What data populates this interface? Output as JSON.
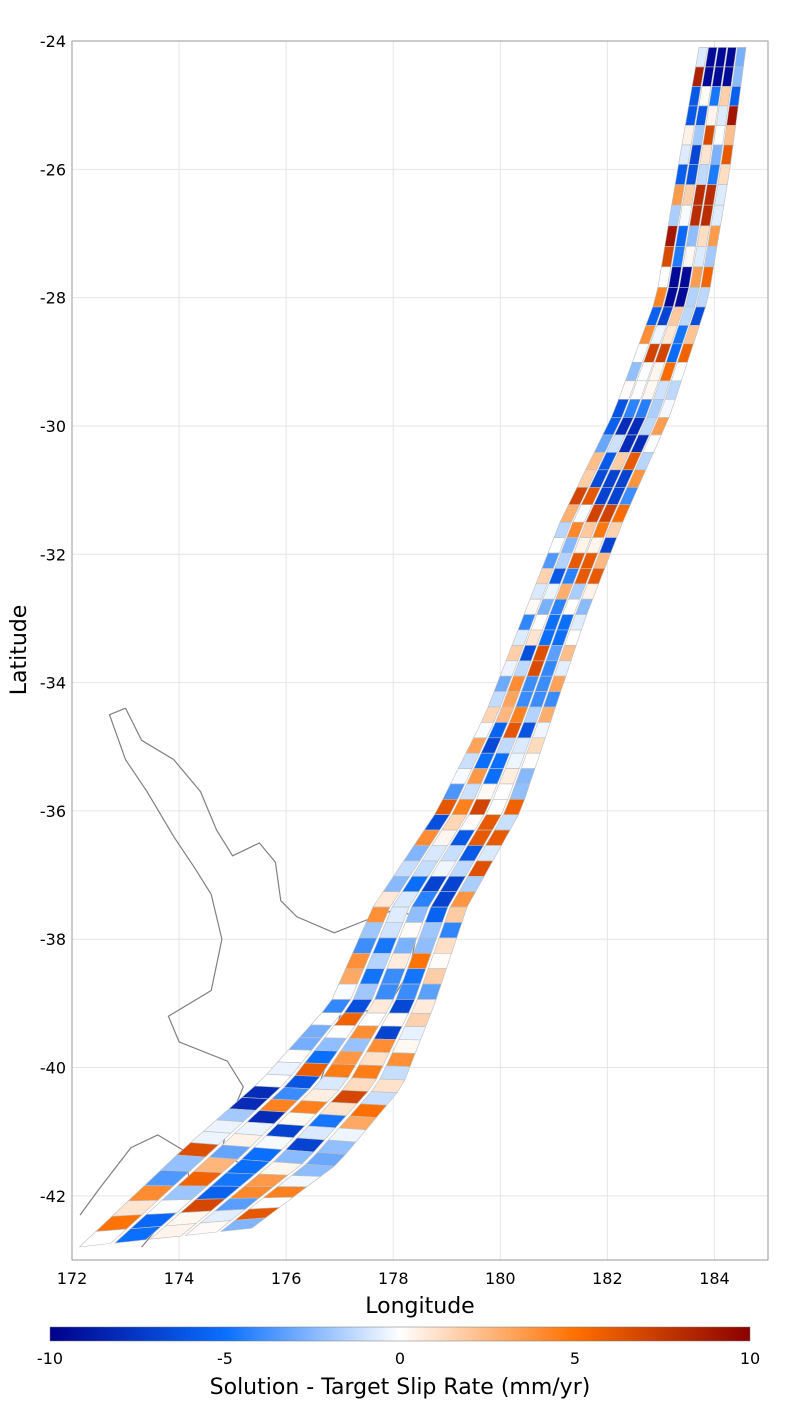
{
  "chart_data": {
    "type": "heatmap",
    "subtype": "fault-subsection-map",
    "xlabel": "Longitude",
    "ylabel": "Latitude",
    "xlim": [
      172,
      185
    ],
    "ylim": [
      -43,
      -24
    ],
    "xticks": [
      172,
      174,
      176,
      178,
      180,
      182,
      184
    ],
    "yticks": [
      -24,
      -26,
      -28,
      -30,
      -32,
      -34,
      -36,
      -38,
      -40,
      -42
    ],
    "grid": true,
    "colorbar": {
      "title": "Solution - Target Slip Rate (mm/yr)",
      "min": -10,
      "max": 10,
      "ticks": [
        -10,
        -5,
        0,
        5,
        10
      ],
      "colors": [
        "#00008b",
        "#0a6fff",
        "#ffffff",
        "#ff7000",
        "#8b0000"
      ]
    },
    "coastline": {
      "color": "#808080",
      "description": "North Island, New Zealand"
    },
    "fault_trace": {
      "description": "Hikurangi-Kermadec subduction interface subsections",
      "trench": [
        [
          184.6,
          -24.1
        ],
        [
          184.3,
          -26.0
        ],
        [
          183.9,
          -28.0
        ],
        [
          183.2,
          -29.8
        ],
        [
          182.3,
          -31.5
        ],
        [
          181.6,
          -33.0
        ],
        [
          181.0,
          -34.5
        ],
        [
          180.4,
          -36.0
        ],
        [
          179.4,
          -37.5
        ],
        [
          178.8,
          -39.0
        ],
        [
          178.2,
          -40.3
        ],
        [
          177.0,
          -41.5
        ],
        [
          175.4,
          -42.5
        ]
      ],
      "downdip": [
        [
          183.7,
          -24.1
        ],
        [
          183.3,
          -26.0
        ],
        [
          182.9,
          -28.0
        ],
        [
          182.1,
          -29.8
        ],
        [
          181.1,
          -31.5
        ],
        [
          180.4,
          -33.0
        ],
        [
          179.7,
          -34.5
        ],
        [
          178.8,
          -36.0
        ],
        [
          177.6,
          -37.5
        ],
        [
          176.8,
          -39.0
        ],
        [
          175.5,
          -40.2
        ],
        [
          174.0,
          -41.3
        ],
        [
          172.1,
          -42.8
        ]
      ]
    },
    "cells": [
      {
        "lon": 184.1,
        "lat": -24.4,
        "value": -9.5
      },
      {
        "lon": 183.85,
        "lat": -24.6,
        "value": 8.5
      },
      {
        "lon": 184.4,
        "lat": -25.1,
        "value": 9
      },
      {
        "lon": 183.6,
        "lat": -25.0,
        "value": -6
      },
      {
        "lon": 184.3,
        "lat": -25.7,
        "value": 6
      },
      {
        "lon": 183.2,
        "lat": -25.8,
        "value": 5
      },
      {
        "lon": 183.8,
        "lat": -26.5,
        "value": 8
      },
      {
        "lon": 183.0,
        "lat": -27.0,
        "value": 9
      },
      {
        "lon": 183.3,
        "lat": -27.8,
        "value": -9.5
      },
      {
        "lon": 183.9,
        "lat": -28.6,
        "value": -10
      },
      {
        "lon": 183.0,
        "lat": -28.9,
        "value": 7
      },
      {
        "lon": 182.4,
        "lat": -30.1,
        "value": -8
      },
      {
        "lon": 182.1,
        "lat": -30.9,
        "value": -7
      },
      {
        "lon": 181.8,
        "lat": -31.4,
        "value": 7
      },
      {
        "lon": 181.6,
        "lat": -32.3,
        "value": 6
      },
      {
        "lon": 181.0,
        "lat": -33.1,
        "value": -5
      },
      {
        "lon": 180.6,
        "lat": -34.1,
        "value": -4
      },
      {
        "lon": 179.9,
        "lat": -35.3,
        "value": -5
      },
      {
        "lon": 179.8,
        "lat": -36.2,
        "value": 6
      },
      {
        "lon": 179.5,
        "lat": -36.6,
        "value": -6
      },
      {
        "lon": 178.9,
        "lat": -37.3,
        "value": -7
      },
      {
        "lon": 178.1,
        "lat": -38.8,
        "value": -4
      },
      {
        "lon": 177.6,
        "lat": -39.6,
        "value": 4
      },
      {
        "lon": 176.6,
        "lat": -39.7,
        "value": -5
      },
      {
        "lon": 175.5,
        "lat": -40.6,
        "value": -8
      },
      {
        "lon": 176.2,
        "lat": -41.1,
        "value": -7
      },
      {
        "lon": 175.5,
        "lat": -41.5,
        "value": -5
      },
      {
        "lon": 174.2,
        "lat": -42.1,
        "value": -2
      }
    ]
  }
}
